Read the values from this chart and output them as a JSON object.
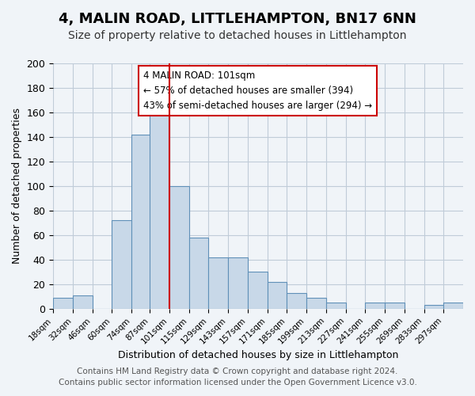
{
  "title": "4, MALIN ROAD, LITTLEHAMPTON, BN17 6NN",
  "subtitle": "Size of property relative to detached houses in Littlehampton",
  "xlabel": "Distribution of detached houses by size in Littlehampton",
  "ylabel": "Number of detached properties",
  "bin_labels": [
    "18sqm",
    "32sqm",
    "46sqm",
    "60sqm",
    "74sqm",
    "87sqm",
    "101sqm",
    "115sqm",
    "129sqm",
    "143sqm",
    "157sqm",
    "171sqm",
    "185sqm",
    "199sqm",
    "213sqm",
    "227sqm",
    "241sqm",
    "255sqm",
    "269sqm",
    "283sqm",
    "297sqm"
  ],
  "bin_edges": [
    18,
    32,
    46,
    60,
    74,
    87,
    101,
    115,
    129,
    143,
    157,
    171,
    185,
    199,
    213,
    227,
    241,
    255,
    269,
    283,
    297
  ],
  "counts": [
    9,
    11,
    0,
    72,
    142,
    167,
    100,
    58,
    42,
    42,
    30,
    22,
    13,
    9,
    5,
    0,
    5,
    5,
    0,
    3,
    5
  ],
  "bar_color": "#c8d8e8",
  "bar_edge_color": "#6090b8",
  "marker_value": 101,
  "marker_color": "#cc0000",
  "annotation_title": "4 MALIN ROAD: 101sqm",
  "annotation_line1": "← 57% of detached houses are smaller (394)",
  "annotation_line2": "43% of semi-detached houses are larger (294) →",
  "annotation_box_color": "#ffffff",
  "annotation_box_edge_color": "#cc0000",
  "ylim": [
    0,
    200
  ],
  "yticks": [
    0,
    20,
    40,
    60,
    80,
    100,
    120,
    140,
    160,
    180,
    200
  ],
  "footer_line1": "Contains HM Land Registry data © Crown copyright and database right 2024.",
  "footer_line2": "Contains public sector information licensed under the Open Government Licence v3.0.",
  "bg_color": "#f0f4f8",
  "plot_bg_color": "#f0f4f8",
  "grid_color": "#c0ccd8",
  "title_fontsize": 13,
  "subtitle_fontsize": 10,
  "footer_fontsize": 7.5
}
